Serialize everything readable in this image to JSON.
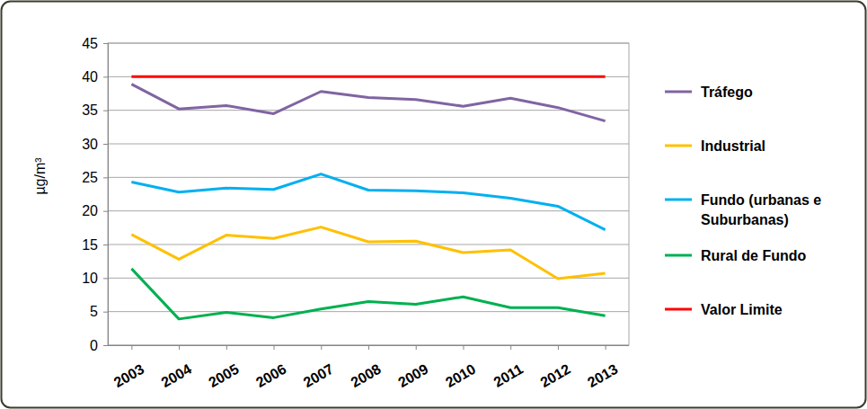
{
  "chart_data": {
    "type": "line",
    "y_label": "µg/m³",
    "categories": [
      "2003",
      "2004",
      "2005",
      "2006",
      "2007",
      "2008",
      "2009",
      "2010",
      "2011",
      "2012",
      "2013"
    ],
    "series": [
      {
        "name": "Tráfego",
        "color": "#8064a2",
        "values": [
          38.9,
          35.2,
          35.7,
          34.5,
          37.8,
          36.9,
          36.6,
          35.6,
          36.8,
          35.4,
          33.4
        ]
      },
      {
        "name": "Industrial",
        "color": "#ffc000",
        "values": [
          16.5,
          12.8,
          16.4,
          15.9,
          17.6,
          15.4,
          15.5,
          13.8,
          14.2,
          9.9,
          10.7
        ]
      },
      {
        "name": "Fundo (urbanas e Suburbanas)",
        "color": "#00b0f0",
        "values": [
          24.3,
          22.8,
          23.4,
          23.2,
          25.5,
          23.1,
          23.0,
          22.7,
          21.9,
          20.7,
          17.2
        ]
      },
      {
        "name": "Rural de Fundo",
        "color": "#00b050",
        "values": [
          11.4,
          3.9,
          4.9,
          4.1,
          5.4,
          6.5,
          6.1,
          7.2,
          5.6,
          5.6,
          4.4
        ]
      },
      {
        "name": "Valor Limite",
        "color": "#ff0000",
        "values": [
          40,
          40,
          40,
          40,
          40,
          40,
          40,
          40,
          40,
          40,
          40
        ]
      }
    ],
    "ylim": [
      0,
      45
    ],
    "yticks": [
      0,
      5,
      10,
      15,
      20,
      25,
      30,
      35,
      40,
      45
    ],
    "grid": true,
    "legend": "right"
  }
}
